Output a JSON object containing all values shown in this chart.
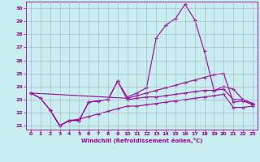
{
  "xlabel": "Windchill (Refroidissement éolien,°C)",
  "xlim": [
    -0.5,
    23.5
  ],
  "ylim": [
    20.7,
    30.5
  ],
  "yticks": [
    21,
    22,
    23,
    24,
    25,
    26,
    27,
    28,
    29,
    30
  ],
  "xticks": [
    0,
    1,
    2,
    3,
    4,
    5,
    6,
    7,
    8,
    9,
    10,
    11,
    12,
    13,
    14,
    15,
    16,
    17,
    18,
    19,
    20,
    21,
    22,
    23
  ],
  "bg_color": "#c8eef0",
  "line_color": "#990099",
  "grid_color": "#aaaacc",
  "lines": [
    {
      "x": [
        0,
        1,
        2,
        3,
        4,
        5,
        6,
        7,
        8,
        9,
        10,
        11,
        12,
        13,
        14,
        15,
        16,
        17,
        18,
        19,
        20,
        21,
        22,
        23
      ],
      "y": [
        23.5,
        23.1,
        22.2,
        21.0,
        21.4,
        21.4,
        22.8,
        22.9,
        23.0,
        24.4,
        23.2,
        23.5,
        23.9,
        27.7,
        28.7,
        29.2,
        30.3,
        29.1,
        26.7,
        23.7,
        24.0,
        23.8,
        23.0,
        22.7
      ]
    },
    {
      "x": [
        0,
        1,
        2,
        3,
        4,
        5,
        6,
        7,
        8,
        9,
        10,
        11,
        12,
        13,
        14,
        15,
        16,
        17,
        18,
        19,
        20,
        21,
        22,
        23
      ],
      "y": [
        23.5,
        23.1,
        22.2,
        21.0,
        21.4,
        21.4,
        22.8,
        22.9,
        23.0,
        24.4,
        23.0,
        23.1,
        23.2,
        23.2,
        23.3,
        23.4,
        23.5,
        23.6,
        23.7,
        23.7,
        23.8,
        23.0,
        23.0,
        22.7
      ]
    },
    {
      "x": [
        0,
        10,
        11,
        12,
        13,
        14,
        15,
        16,
        17,
        18,
        19,
        20,
        21,
        22,
        23
      ],
      "y": [
        23.5,
        23.1,
        23.3,
        23.5,
        23.7,
        23.9,
        24.1,
        24.3,
        24.5,
        24.7,
        24.9,
        25.0,
        22.8,
        22.9,
        22.6
      ]
    },
    {
      "x": [
        2,
        3,
        4,
        5,
        6,
        7,
        8,
        9,
        10,
        11,
        12,
        13,
        14,
        15,
        16,
        17,
        18,
        19,
        20,
        21,
        22,
        23
      ],
      "y": [
        22.2,
        21.0,
        21.4,
        21.5,
        21.7,
        21.9,
        22.1,
        22.3,
        22.5,
        22.5,
        22.6,
        22.7,
        22.8,
        22.9,
        23.0,
        23.1,
        23.2,
        23.3,
        23.4,
        22.4,
        22.4,
        22.5
      ]
    }
  ]
}
